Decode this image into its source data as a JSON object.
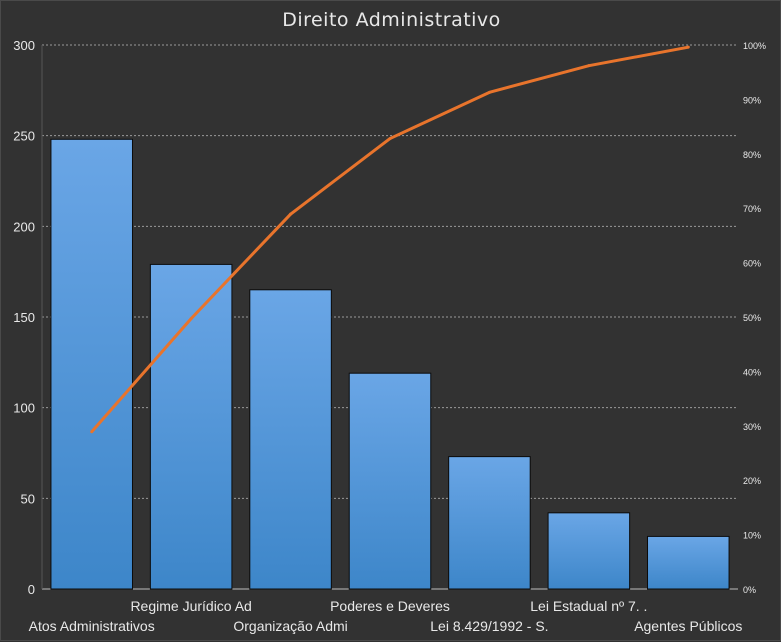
{
  "chart_data": {
    "type": "bar",
    "title": "Direito Administrativo",
    "categories": [
      "Atos Administrativos",
      "Regime Jurídico Ad",
      "Organização Admi",
      "Poderes e Deveres",
      "Lei 8.429/1992 - S.",
      "Lei Estadual nº 7. .",
      "Agentes Públicos"
    ],
    "series": [
      {
        "type": "bar",
        "values": [
          248,
          179,
          165,
          119,
          73,
          42,
          29
        ]
      },
      {
        "type": "line",
        "axis": "right",
        "values": [
          28.9,
          49.7,
          68.9,
          82.8,
          91.3,
          96.2,
          99.6
        ]
      }
    ],
    "ylim": [
      0,
      300
    ],
    "yticks": [
      0,
      50,
      100,
      150,
      200,
      250,
      300
    ],
    "y2lim": [
      0,
      100
    ],
    "y2ticks": [
      "0%",
      "10%",
      "20%",
      "30%",
      "40%",
      "50%",
      "60%",
      "70%",
      "80%",
      "90%",
      "100%"
    ],
    "grid": true,
    "legend": "none"
  },
  "colors": {
    "background": "#323232",
    "bar_top": "#6aa6e6",
    "bar_bottom": "#3d86c9",
    "line": "#e8742c",
    "grid": "#9a9a9a",
    "text": "#e8e8e8"
  }
}
